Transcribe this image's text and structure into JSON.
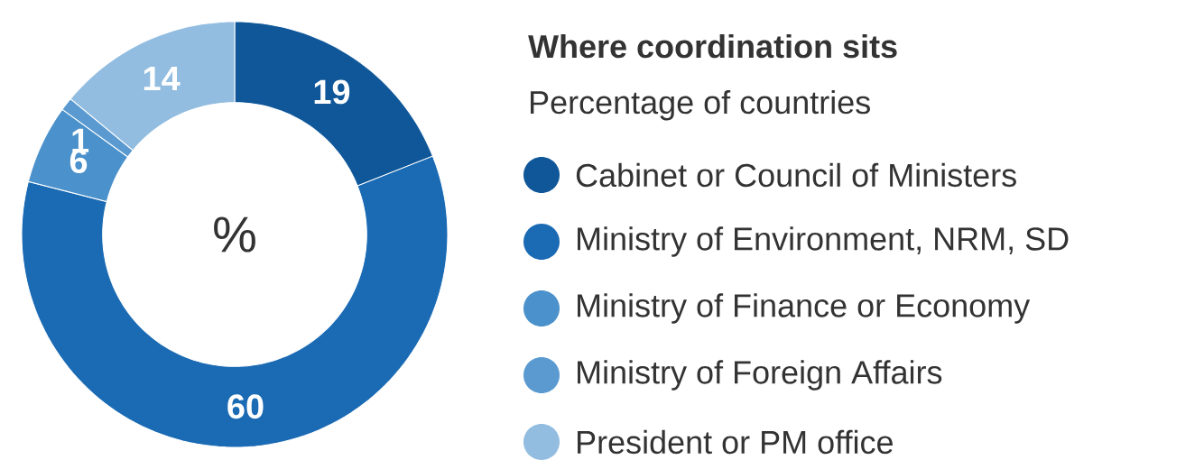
{
  "chart_data": {
    "type": "donut",
    "title": "Where coordination sits",
    "subtitle": "Percentage of countries",
    "categories": [
      "Cabinet or Council of Ministers",
      "Ministry of Environment, NRM, SD",
      "Ministry of Finance or Economy",
      "Ministry of Foreign Affairs",
      "President or PM office"
    ],
    "values": [
      19,
      60,
      6,
      1,
      14
    ],
    "colors": [
      "#0f5799",
      "#1a6ab4",
      "#4b91cb",
      "#5a9ad0",
      "#92bde0"
    ],
    "data_labels": true,
    "legend": "right",
    "annotations": [
      "%"
    ]
  }
}
